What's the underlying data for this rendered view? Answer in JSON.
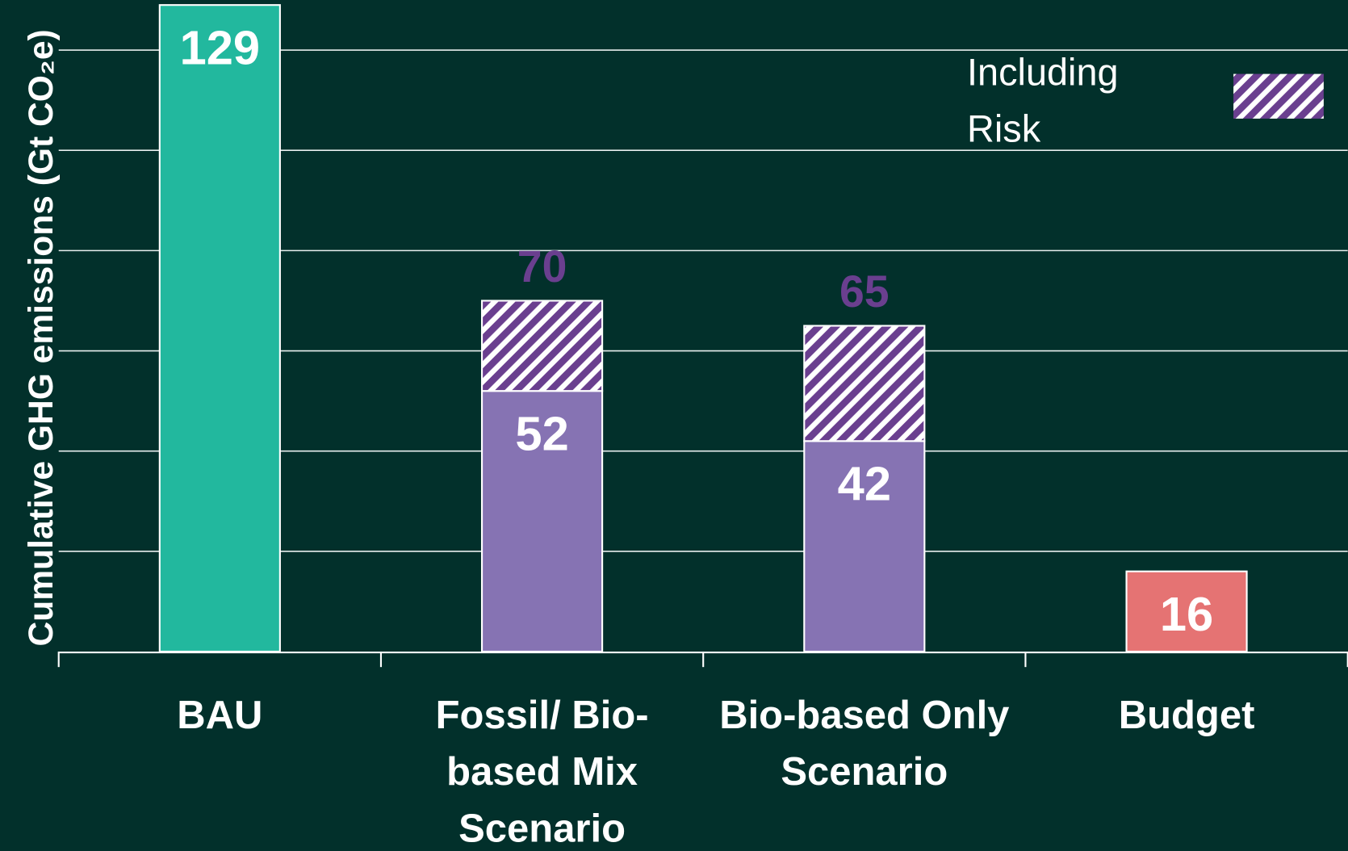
{
  "chart_data": {
    "type": "stacked_bar",
    "y_label": "Cumulative GHG emissions (Gt CO₂e)",
    "categories": [
      "BAU",
      "Fossil/ Bio-based Mix Scenario",
      "Bio-based Only Scenario",
      "Budget"
    ],
    "series": [
      {
        "colors": [
          "#22b89e",
          "#8673b3",
          "#8673b3",
          "#e57373"
        ],
        "values": [
          129,
          52,
          42,
          16
        ]
      },
      {
        "name": "Including Risk",
        "color": "#6a3f8f",
        "hatch": true,
        "values": [
          null,
          18,
          23,
          null
        ]
      }
    ],
    "totals": [
      null,
      70,
      65,
      null
    ],
    "total_color": "#6a3f8f",
    "ylim": [
      0,
      130
    ],
    "yticks": [
      0,
      20,
      40,
      60,
      80,
      100,
      120
    ],
    "grid": true
  }
}
